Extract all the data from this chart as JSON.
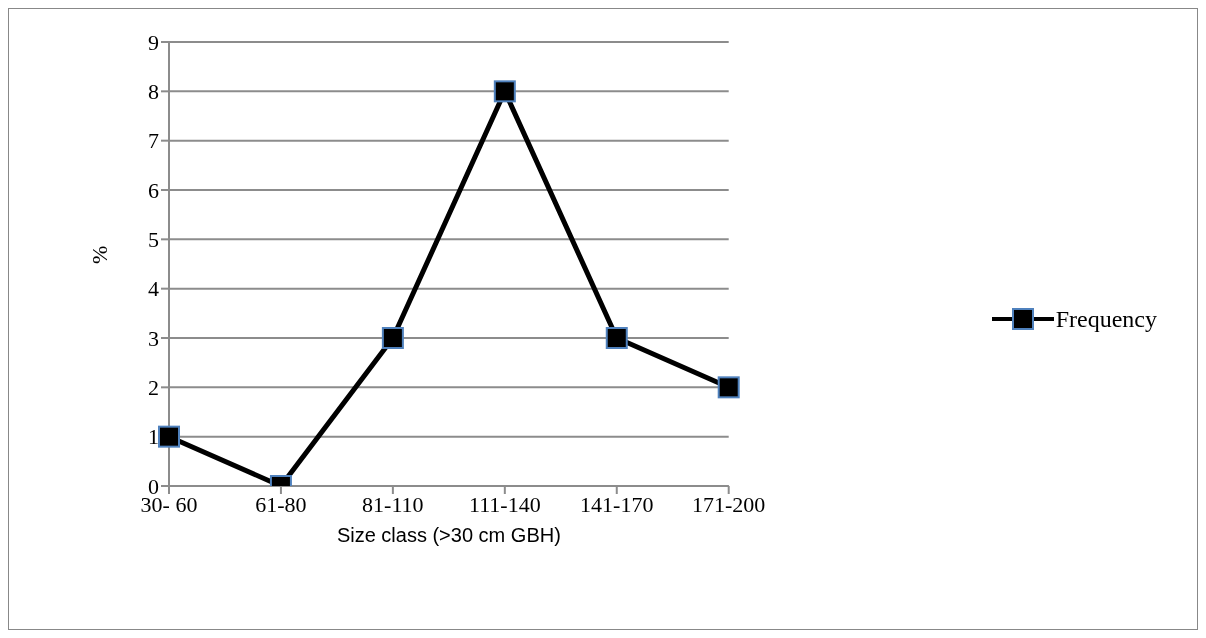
{
  "chart_data": {
    "type": "line",
    "xlabel": "Size class (>30 cm GBH)",
    "ylabel": "%",
    "categories": [
      "30- 60",
      "61-80",
      "81-110",
      "111-140",
      "141-170",
      "171-200"
    ],
    "series": [
      {
        "name": "Frequency",
        "color": "#000000",
        "values": [
          1,
          0,
          3,
          8,
          3,
          2
        ]
      }
    ],
    "ylim": [
      0,
      9
    ],
    "yticks": [
      0,
      1,
      2,
      3,
      4,
      5,
      6,
      7,
      8,
      9
    ],
    "grid": "y",
    "legend": "right",
    "marker": "square",
    "line_style": "solid"
  }
}
